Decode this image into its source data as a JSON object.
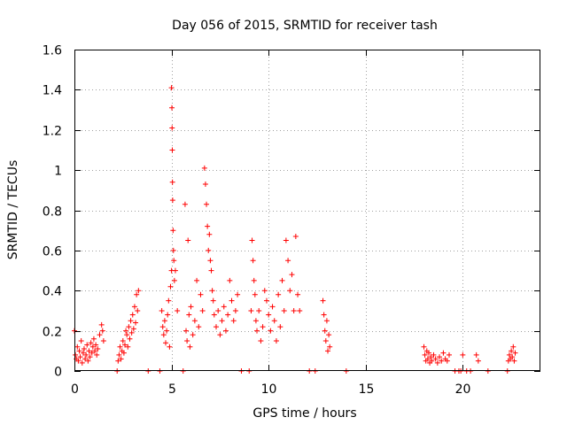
{
  "chart_data": {
    "type": "scatter",
    "title": "Day 056 of 2015, SRMTID for receiver tash",
    "xlabel": "GPS time / hours",
    "ylabel": "SRMTID / TECUs",
    "xlim": [
      0,
      24
    ],
    "ylim": [
      0,
      1.6
    ],
    "x_ticks": [
      0,
      5,
      10,
      15,
      20
    ],
    "x_tick_labels": [
      "0",
      "5",
      "10",
      "15",
      "20"
    ],
    "y_ticks": [
      0,
      0.2,
      0.4,
      0.6,
      0.8,
      1.0,
      1.2,
      1.4,
      1.6
    ],
    "y_tick_labels": [
      "0",
      "0.2",
      "0.4",
      "0.6",
      "0.8",
      "1",
      "1.2",
      "1.4",
      "1.6"
    ],
    "grid": true,
    "marker": "plus",
    "marker_color": "#ff0000",
    "series": [
      {
        "name": "SRMTID",
        "x": [
          0.0,
          0.05,
          0.1,
          0.15,
          0.2,
          0.25,
          0.3,
          0.35,
          0.4,
          0.45,
          0.5,
          0.55,
          0.6,
          0.65,
          0.7,
          0.75,
          0.8,
          0.85,
          0.9,
          0.95,
          1.0,
          1.05,
          1.1,
          1.15,
          1.2,
          1.3,
          1.4,
          1.45,
          1.5,
          2.2,
          2.25,
          2.3,
          2.35,
          2.4,
          2.45,
          2.5,
          2.55,
          2.6,
          2.65,
          2.7,
          2.75,
          2.8,
          2.85,
          2.9,
          2.95,
          3.0,
          3.05,
          3.1,
          3.15,
          3.2,
          3.25,
          3.3,
          3.8,
          4.4,
          4.5,
          4.55,
          4.6,
          4.65,
          4.7,
          4.75,
          4.8,
          4.85,
          4.9,
          4.95,
          5.0,
          5.0,
          5.02,
          5.03,
          5.04,
          5.05,
          5.06,
          5.08,
          5.1,
          5.12,
          5.15,
          5.2,
          5.3,
          5.6,
          5.7,
          5.75,
          5.8,
          5.85,
          5.9,
          5.95,
          6.0,
          6.1,
          6.2,
          6.3,
          6.4,
          6.5,
          6.6,
          6.7,
          6.75,
          6.8,
          6.85,
          6.9,
          6.95,
          7.0,
          7.05,
          7.1,
          7.15,
          7.2,
          7.3,
          7.4,
          7.5,
          7.6,
          7.7,
          7.8,
          7.9,
          8.0,
          8.1,
          8.2,
          8.3,
          8.4,
          8.6,
          9.0,
          9.1,
          9.15,
          9.2,
          9.25,
          9.3,
          9.35,
          9.4,
          9.5,
          9.6,
          9.7,
          9.8,
          9.9,
          10.0,
          10.1,
          10.2,
          10.3,
          10.4,
          10.5,
          10.6,
          10.7,
          10.8,
          10.9,
          11.0,
          11.1,
          11.2,
          11.3,
          11.4,
          11.5,
          11.6,
          12.1,
          12.4,
          12.8,
          12.85,
          12.9,
          12.95,
          13.0,
          13.05,
          13.1,
          13.15,
          14.0,
          18.0,
          18.05,
          18.1,
          18.15,
          18.2,
          18.25,
          18.3,
          18.35,
          18.4,
          18.5,
          18.6,
          18.7,
          18.8,
          18.9,
          19.0,
          19.1,
          19.2,
          19.3,
          19.6,
          19.8,
          19.9,
          20.0,
          20.2,
          20.4,
          20.7,
          20.8,
          21.3,
          22.3,
          22.35,
          22.4,
          22.45,
          22.5,
          22.55,
          22.6,
          22.65,
          22.7
        ],
        "y": [
          0.2,
          0.08,
          0.06,
          0.12,
          0.05,
          0.1,
          0.07,
          0.15,
          0.04,
          0.09,
          0.11,
          0.06,
          0.08,
          0.13,
          0.05,
          0.1,
          0.07,
          0.14,
          0.09,
          0.12,
          0.16,
          0.1,
          0.13,
          0.08,
          0.11,
          0.18,
          0.23,
          0.2,
          0.15,
          0.0,
          0.05,
          0.08,
          0.12,
          0.06,
          0.1,
          0.15,
          0.09,
          0.13,
          0.2,
          0.18,
          0.12,
          0.22,
          0.16,
          0.25,
          0.19,
          0.28,
          0.21,
          0.32,
          0.24,
          0.38,
          0.3,
          0.4,
          0.0,
          0.0,
          0.3,
          0.22,
          0.18,
          0.25,
          0.14,
          0.2,
          0.28,
          0.35,
          0.12,
          0.42,
          1.41,
          0.5,
          1.31,
          1.21,
          1.1,
          0.94,
          0.85,
          0.7,
          0.6,
          0.55,
          0.45,
          0.5,
          0.3,
          0.0,
          0.83,
          0.2,
          0.15,
          0.65,
          0.28,
          0.12,
          0.32,
          0.18,
          0.25,
          0.45,
          0.22,
          0.38,
          0.3,
          1.01,
          0.93,
          0.83,
          0.72,
          0.6,
          0.68,
          0.55,
          0.5,
          0.4,
          0.35,
          0.28,
          0.22,
          0.3,
          0.18,
          0.25,
          0.32,
          0.2,
          0.28,
          0.45,
          0.35,
          0.25,
          0.3,
          0.38,
          0.0,
          0.0,
          0.3,
          0.65,
          0.55,
          0.45,
          0.38,
          0.25,
          0.2,
          0.3,
          0.15,
          0.22,
          0.4,
          0.35,
          0.28,
          0.2,
          0.32,
          0.25,
          0.15,
          0.38,
          0.22,
          0.45,
          0.3,
          0.65,
          0.55,
          0.4,
          0.48,
          0.3,
          0.67,
          0.38,
          0.3,
          0.0,
          0.0,
          0.35,
          0.28,
          0.2,
          0.15,
          0.25,
          0.1,
          0.18,
          0.12,
          0.0,
          0.12,
          0.08,
          0.05,
          0.1,
          0.06,
          0.09,
          0.04,
          0.07,
          0.05,
          0.08,
          0.06,
          0.04,
          0.07,
          0.05,
          0.09,
          0.06,
          0.05,
          0.08,
          0.0,
          0.0,
          0.0,
          0.08,
          0.0,
          0.0,
          0.08,
          0.05,
          0.0,
          0.0,
          0.05,
          0.08,
          0.06,
          0.1,
          0.07,
          0.12,
          0.05,
          0.09
        ]
      }
    ]
  }
}
